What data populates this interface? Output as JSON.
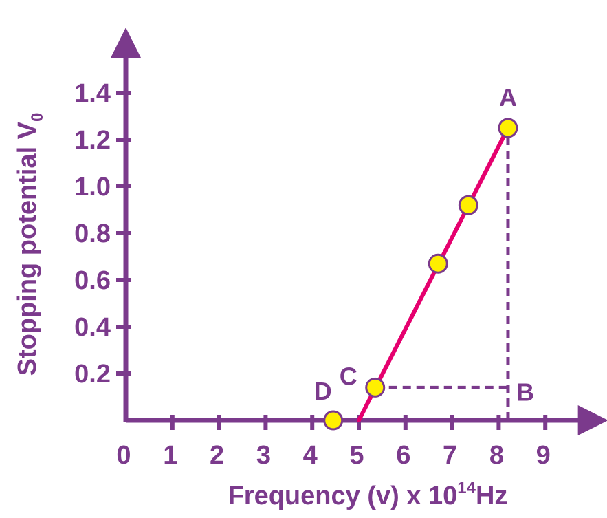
{
  "chart_data": {
    "type": "scatter",
    "xlabel_main": "Frequency (v) x 10",
    "xlabel_sup": "14",
    "xlabel_unit": "Hz",
    "ylabel_main": "Stopping potential V",
    "ylabel_sub": "0",
    "xlim": [
      0,
      9.7
    ],
    "ylim": [
      0,
      1.55
    ],
    "x_ticks": [
      0,
      1,
      2,
      3,
      4,
      5,
      6,
      7,
      8,
      9
    ],
    "x_tick_labels": [
      "0",
      "1",
      "2",
      "3",
      "4",
      "5",
      "6",
      "7",
      "8",
      "9"
    ],
    "y_ticks": [
      0.2,
      0.4,
      0.6,
      0.8,
      1.0,
      1.2,
      1.4
    ],
    "y_tick_labels": [
      "0.2",
      "0.4",
      "0.6",
      "0.8",
      "1.0",
      "1.2",
      "1.4"
    ],
    "series": [
      {
        "points": [
          {
            "x": 4.45,
            "y": 0.0,
            "label": "D"
          },
          {
            "x": 5.35,
            "y": 0.14,
            "label": "C"
          },
          {
            "x": 6.7,
            "y": 0.67,
            "label": ""
          },
          {
            "x": 7.35,
            "y": 0.92,
            "label": ""
          },
          {
            "x": 8.2,
            "y": 1.25,
            "label": "A"
          }
        ]
      }
    ],
    "fit_line": {
      "x": [
        5.0,
        8.2
      ],
      "y": [
        0.0,
        1.25
      ]
    },
    "annotations": [
      {
        "label": "B",
        "x": 8.2,
        "y": 0.14
      }
    ],
    "dashed_lines": [
      {
        "x": [
          5.35,
          8.2
        ],
        "y": [
          0.14,
          0.14
        ]
      },
      {
        "x": [
          8.2,
          8.2
        ],
        "y": [
          0.0,
          1.25
        ]
      }
    ],
    "colors": {
      "axis": "#7b3a8c",
      "text": "#7b3a8c",
      "line": "#e5006e",
      "point_fill": "#ffef00",
      "point_stroke": "#7b3a8c"
    }
  }
}
